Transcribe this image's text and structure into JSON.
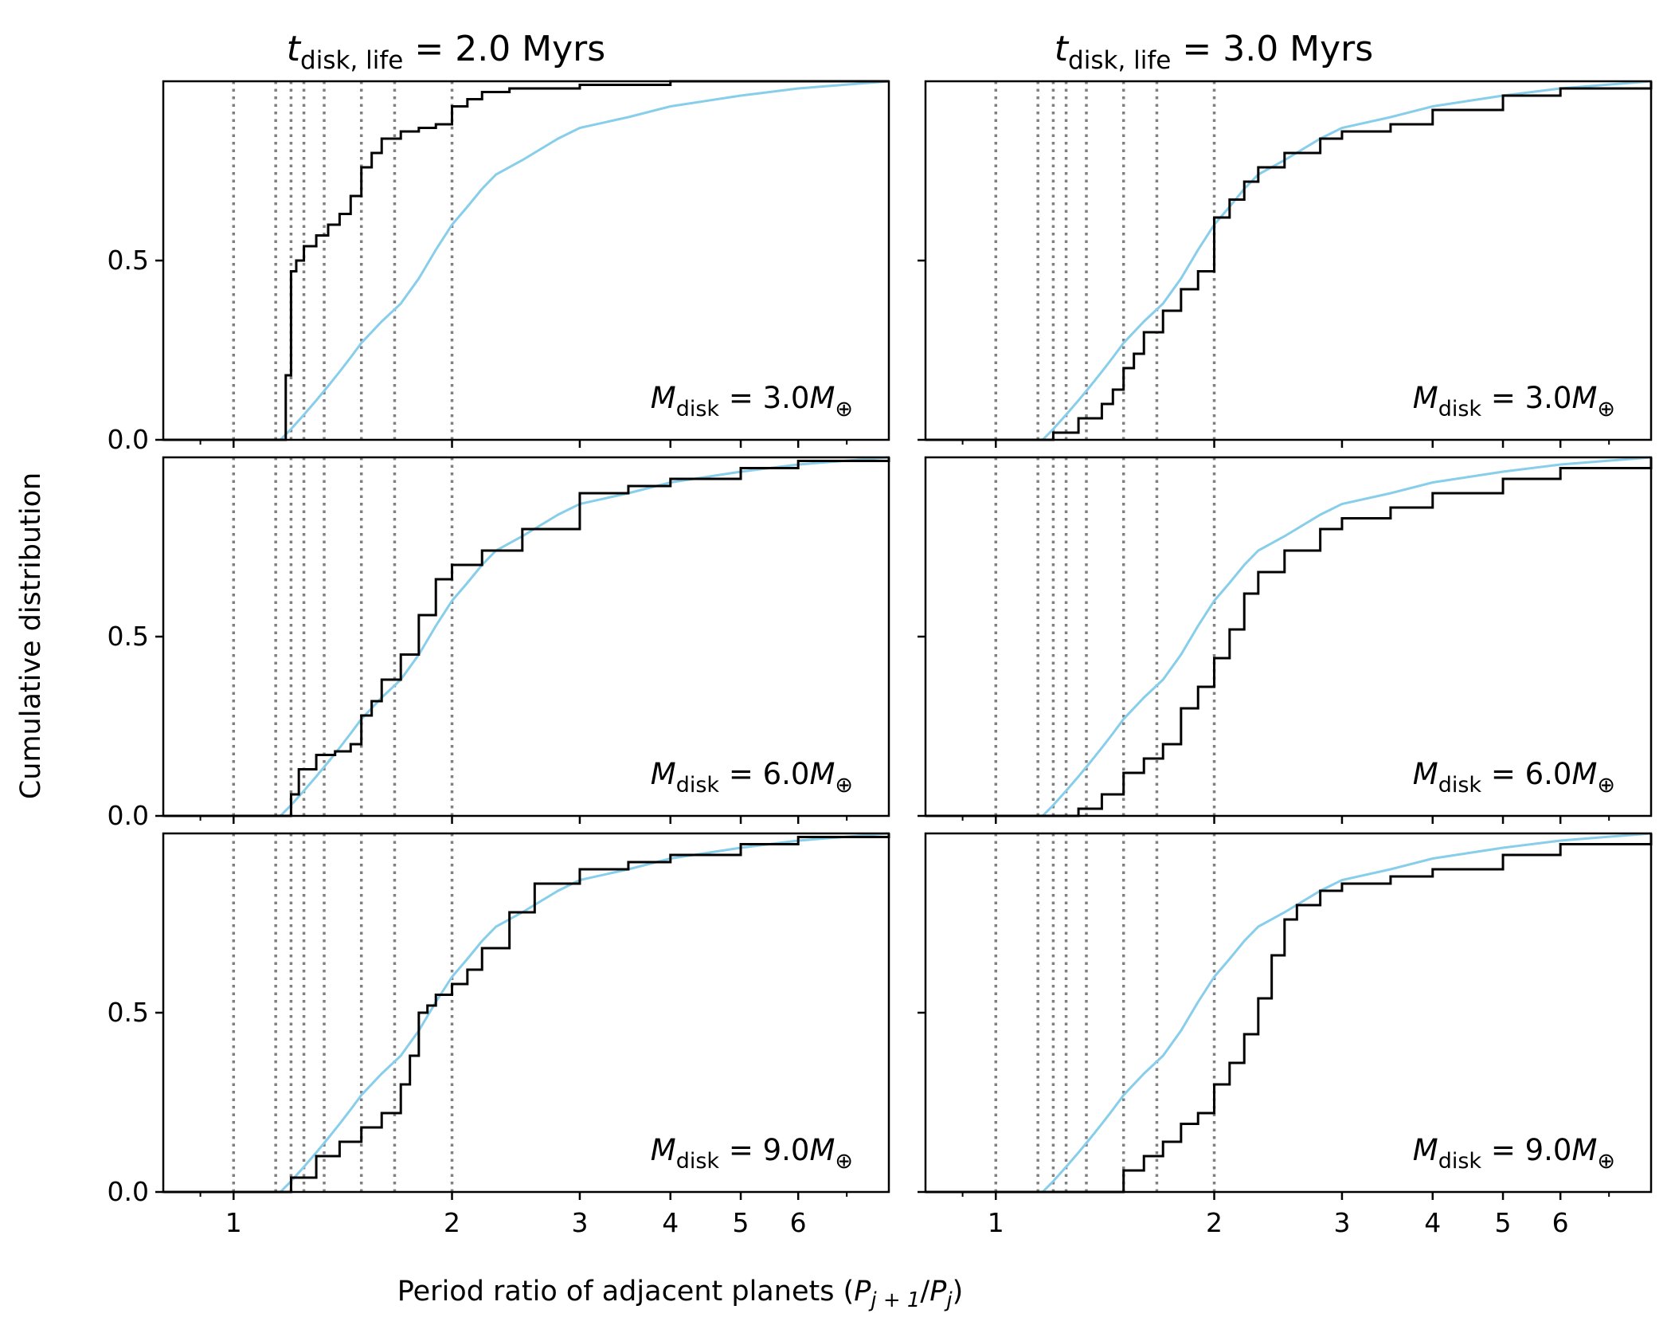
{
  "figure": {
    "column_titles": [
      {
        "t": "t",
        "sub": "disk, life",
        "rest": " = 2.0 Myrs"
      },
      {
        "t": "t",
        "sub": "disk, life",
        "rest": " = 3.0 Myrs"
      }
    ],
    "xlabel_text": "Period ratio of adjacent planets (",
    "xlabel_math": {
      "p1": "P",
      "sub1": "j + 1",
      "slash": "/",
      "p2": "P",
      "sub2": "j",
      "close": ")"
    },
    "ylabel": "Cumulative distribution",
    "panel_annotations": [
      {
        "m": "M",
        "sub": "disk",
        "rest": " = 3.0",
        "m2": "M",
        "sub2": "⊕"
      },
      {
        "m": "M",
        "sub": "disk",
        "rest": " = 6.0",
        "m2": "M",
        "sub2": "⊕"
      },
      {
        "m": "M",
        "sub": "disk",
        "rest": " = 9.0",
        "m2": "M",
        "sub2": "⊕"
      }
    ],
    "colors": {
      "black_series": "#000000",
      "blue_series": "#87ceeb",
      "resonance_lines": "#808080"
    }
  },
  "chart_data": {
    "type": "line",
    "layout": "3 rows x 2 columns, shared axes",
    "xscale": "log",
    "xlim": [
      0.8,
      8.0
    ],
    "ylim": [
      0.0,
      1.0
    ],
    "x_ticks": [
      1,
      2,
      3,
      4,
      5,
      6
    ],
    "x_tick_labels": [
      "1",
      "2",
      "3",
      "4",
      "5",
      "6"
    ],
    "y_ticks": [
      0.0,
      0.5
    ],
    "y_tick_labels": [
      "0.0",
      "0.5"
    ],
    "resonance_lines_x": [
      1.0,
      1.143,
      1.2,
      1.25,
      1.333,
      1.5,
      1.667,
      2.0
    ],
    "blue_series": {
      "x": [
        1.16,
        1.2,
        1.25,
        1.3,
        1.35,
        1.4,
        1.45,
        1.5,
        1.6,
        1.7,
        1.8,
        1.9,
        2.0,
        2.1,
        2.2,
        2.3,
        2.5,
        2.8,
        3.0,
        3.5,
        4.0,
        5.0,
        6.0,
        8.0
      ],
      "y": [
        0.0,
        0.03,
        0.07,
        0.11,
        0.15,
        0.19,
        0.23,
        0.27,
        0.33,
        0.38,
        0.45,
        0.53,
        0.6,
        0.65,
        0.7,
        0.74,
        0.78,
        0.84,
        0.87,
        0.9,
        0.93,
        0.96,
        0.98,
        1.0
      ]
    },
    "panels": [
      {
        "row": 1,
        "col": 1,
        "black": {
          "x": [
            1.15,
            1.18,
            1.2,
            1.22,
            1.25,
            1.3,
            1.35,
            1.4,
            1.45,
            1.5,
            1.55,
            1.6,
            1.7,
            1.8,
            1.9,
            2.0,
            2.1,
            2.2,
            2.4,
            3.0,
            4.0,
            6.0,
            8.0
          ],
          "y": [
            0.0,
            0.18,
            0.47,
            0.5,
            0.54,
            0.57,
            0.6,
            0.63,
            0.68,
            0.76,
            0.8,
            0.84,
            0.86,
            0.87,
            0.88,
            0.93,
            0.95,
            0.97,
            0.98,
            0.99,
            1.0,
            1.0,
            1.0
          ]
        }
      },
      {
        "row": 1,
        "col": 2,
        "black": {
          "x": [
            1.15,
            1.2,
            1.3,
            1.4,
            1.45,
            1.5,
            1.55,
            1.6,
            1.7,
            1.8,
            1.9,
            2.0,
            2.1,
            2.2,
            2.3,
            2.5,
            2.8,
            3.0,
            3.5,
            4.0,
            5.0,
            6.0,
            8.0
          ],
          "y": [
            0.0,
            0.02,
            0.06,
            0.1,
            0.14,
            0.2,
            0.24,
            0.3,
            0.36,
            0.42,
            0.47,
            0.62,
            0.67,
            0.72,
            0.76,
            0.8,
            0.84,
            0.86,
            0.88,
            0.92,
            0.96,
            0.98,
            1.0
          ]
        }
      },
      {
        "row": 2,
        "col": 1,
        "black": {
          "x": [
            1.16,
            1.2,
            1.23,
            1.3,
            1.38,
            1.45,
            1.5,
            1.55,
            1.6,
            1.7,
            1.8,
            1.9,
            2.0,
            2.2,
            2.5,
            3.0,
            3.5,
            4.0,
            5.0,
            6.0,
            8.0
          ],
          "y": [
            0.0,
            0.06,
            0.13,
            0.17,
            0.18,
            0.2,
            0.28,
            0.32,
            0.38,
            0.45,
            0.56,
            0.66,
            0.7,
            0.74,
            0.8,
            0.9,
            0.92,
            0.94,
            0.97,
            0.99,
            1.0
          ]
        }
      },
      {
        "row": 2,
        "col": 2,
        "black": {
          "x": [
            1.2,
            1.3,
            1.4,
            1.5,
            1.6,
            1.7,
            1.8,
            1.9,
            2.0,
            2.1,
            2.2,
            2.3,
            2.5,
            2.8,
            3.0,
            3.5,
            4.0,
            5.0,
            6.0,
            8.0
          ],
          "y": [
            0.0,
            0.02,
            0.06,
            0.12,
            0.16,
            0.2,
            0.3,
            0.36,
            0.44,
            0.52,
            0.62,
            0.68,
            0.74,
            0.8,
            0.83,
            0.86,
            0.9,
            0.94,
            0.97,
            1.0
          ]
        }
      },
      {
        "row": 3,
        "col": 1,
        "black": {
          "x": [
            1.14,
            1.2,
            1.3,
            1.4,
            1.5,
            1.6,
            1.7,
            1.75,
            1.8,
            1.85,
            1.9,
            2.0,
            2.1,
            2.2,
            2.4,
            2.6,
            3.0,
            3.5,
            4.0,
            5.0,
            6.0,
            8.0
          ],
          "y": [
            0.0,
            0.04,
            0.1,
            0.14,
            0.18,
            0.22,
            0.3,
            0.38,
            0.5,
            0.52,
            0.55,
            0.58,
            0.62,
            0.68,
            0.78,
            0.86,
            0.9,
            0.92,
            0.94,
            0.97,
            0.99,
            1.0
          ]
        }
      },
      {
        "row": 3,
        "col": 2,
        "black": {
          "x": [
            1.48,
            1.5,
            1.6,
            1.7,
            1.8,
            1.9,
            2.0,
            2.1,
            2.2,
            2.3,
            2.4,
            2.5,
            2.6,
            2.8,
            3.0,
            3.5,
            4.0,
            5.0,
            6.0,
            8.0
          ],
          "y": [
            0.0,
            0.06,
            0.1,
            0.14,
            0.19,
            0.22,
            0.3,
            0.36,
            0.44,
            0.54,
            0.66,
            0.76,
            0.8,
            0.84,
            0.86,
            0.88,
            0.9,
            0.94,
            0.97,
            1.0
          ]
        }
      }
    ]
  }
}
